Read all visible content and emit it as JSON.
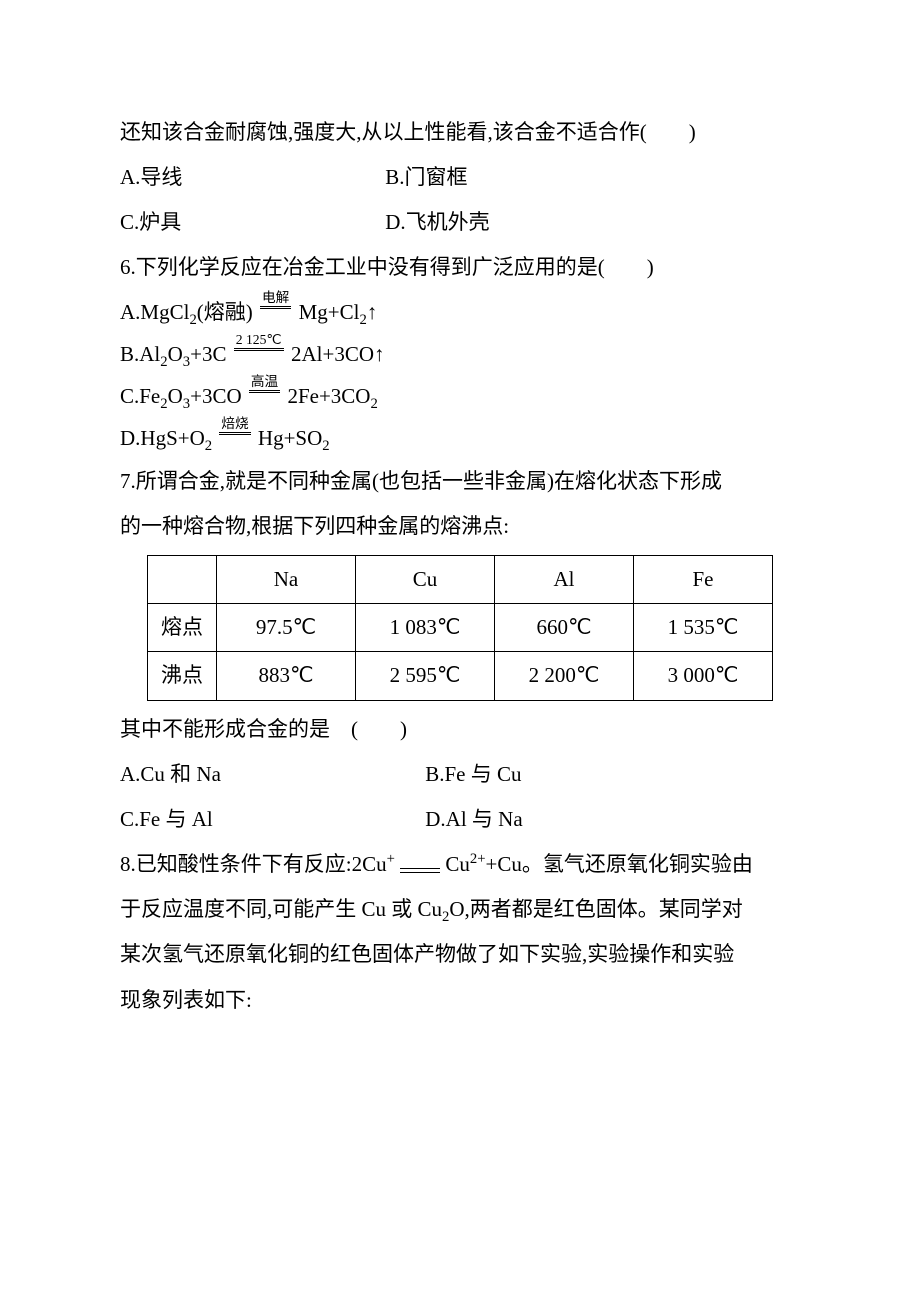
{
  "q5": {
    "stem": "还知该合金耐腐蚀,强度大,从以上性能看,该合金不适合作(　　)",
    "optA": "A.导线",
    "optB": "B.门窗框",
    "optC": "C.炉具",
    "optD": "D.飞机外壳"
  },
  "q6": {
    "stem": "6.下列化学反应在冶金工业中没有得到广泛应用的是(　　)",
    "a_prefix": "A.MgCl",
    "a_sub1": "2",
    "a_mid1": "(熔融)",
    "a_cond": "电解",
    "a_after": "Mg+Cl",
    "a_sub2": "2",
    "a_tail": "↑",
    "b_prefix": "B.Al",
    "b_sub1": "2",
    "b_mid1": "O",
    "b_sub2": "3",
    "b_mid2": "+3C",
    "b_cond": "2 125℃",
    "b_after": "2Al+3CO↑",
    "c_prefix": "C.Fe",
    "c_sub1": "2",
    "c_mid1": "O",
    "c_sub2": "3",
    "c_mid2": "+3CO",
    "c_cond": "高温",
    "c_after": "2Fe+3CO",
    "c_sub3": "2",
    "d_prefix": "D.HgS+O",
    "d_sub1": "2",
    "d_cond": "焙烧",
    "d_after": "Hg+SO",
    "d_sub2": "2"
  },
  "q7": {
    "stem1": "7.所谓合金,就是不同种金属(也包括一些非金属)在熔化状态下形成",
    "stem2": "的一种熔合物,根据下列四种金属的熔沸点:",
    "table": {
      "header": [
        "",
        "Na",
        "Cu",
        "Al",
        "Fe"
      ],
      "rows": [
        [
          "熔点",
          "97.5℃",
          "1 083℃",
          "660℃",
          "1 535℃"
        ],
        [
          "沸点",
          "883℃",
          "2 595℃",
          "2 200℃",
          "3 000℃"
        ]
      ]
    },
    "stem3": "其中不能形成合金的是　(　　)",
    "optA": "A.Cu 和 Na",
    "optB": "B.Fe 与 Cu",
    "optC": "C.Fe 与 Al",
    "optD": "D.Al 与 Na"
  },
  "q8": {
    "l1a": "8.已知酸性条件下有反应:2Cu",
    "l1b": "Cu",
    "l1c": "+Cu。氢气还原氧化铜实验由",
    "l2a": "于反应温度不同,可能产生 Cu 或 Cu",
    "l2b": "O,两者都是红色固体。某同学对",
    "l3": "某次氢气还原氧化铜的红色固体产物做了如下实验,实验操作和实验",
    "l4": "现象列表如下:"
  }
}
